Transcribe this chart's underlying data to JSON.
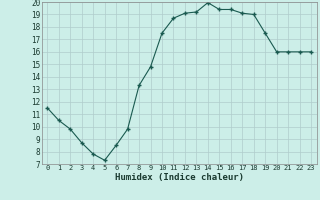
{
  "x": [
    0,
    1,
    2,
    3,
    4,
    5,
    6,
    7,
    8,
    9,
    10,
    11,
    12,
    13,
    14,
    15,
    16,
    17,
    18,
    19,
    20,
    21,
    22,
    23
  ],
  "y": [
    11.5,
    10.5,
    9.8,
    8.7,
    7.8,
    7.3,
    8.5,
    9.8,
    13.3,
    14.8,
    17.5,
    18.7,
    19.1,
    19.2,
    19.95,
    19.4,
    19.4,
    19.1,
    19.0,
    17.5,
    16.0,
    16.0,
    16.0,
    16.0
  ],
  "bg_color": "#cceee8",
  "line_color": "#1a5a50",
  "marker_color": "#1a5a50",
  "grid_color": "#b0cccc",
  "xlabel": "Humidex (Indice chaleur)",
  "xlim": [
    -0.5,
    23.5
  ],
  "ylim": [
    7,
    20
  ],
  "yticks": [
    7,
    8,
    9,
    10,
    11,
    12,
    13,
    14,
    15,
    16,
    17,
    18,
    19,
    20
  ],
  "xticks": [
    0,
    1,
    2,
    3,
    4,
    5,
    6,
    7,
    8,
    9,
    10,
    11,
    12,
    13,
    14,
    15,
    16,
    17,
    18,
    19,
    20,
    21,
    22,
    23
  ]
}
